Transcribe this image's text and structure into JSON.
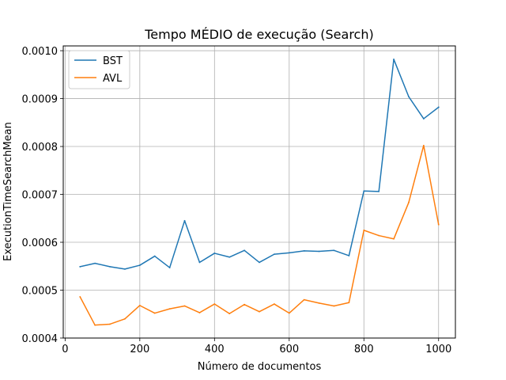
{
  "chart_data": {
    "type": "line",
    "title": "Tempo MÉDIO de execução (Search)",
    "xlabel": "Número de documentos",
    "ylabel": "ExecutionTimeSearchMean",
    "xlim": [
      -5,
      1045
    ],
    "ylim": [
      0.0004,
      0.00101
    ],
    "xticks": [
      0,
      200,
      400,
      600,
      800,
      1000
    ],
    "yticks": [
      0.0004,
      0.0005,
      0.0006,
      0.0007,
      0.0008,
      0.0009,
      0.001
    ],
    "ytick_labels": [
      "0.0004",
      "0.0005",
      "0.0006",
      "0.0007",
      "0.0008",
      "0.0009",
      "0.0010"
    ],
    "grid": true,
    "legend_position": "top-left",
    "x": [
      40,
      80,
      120,
      160,
      200,
      240,
      280,
      320,
      360,
      400,
      440,
      480,
      520,
      560,
      600,
      640,
      680,
      720,
      760,
      800,
      840,
      880,
      920,
      960,
      1000
    ],
    "series": [
      {
        "name": "BST",
        "color": "#1f77b4",
        "values": [
          0.000549,
          0.000556,
          0.000549,
          0.000544,
          0.000552,
          0.000571,
          0.000547,
          0.000645,
          0.000558,
          0.000577,
          0.000569,
          0.000583,
          0.000558,
          0.000575,
          0.000578,
          0.000582,
          0.000581,
          0.000583,
          0.000572,
          0.000707,
          0.000706,
          0.000982,
          0.000904,
          0.000858,
          0.000882
        ]
      },
      {
        "name": "AVL",
        "color": "#ff7f0e",
        "values": [
          0.000486,
          0.000427,
          0.000429,
          0.00044,
          0.000468,
          0.000452,
          0.000461,
          0.000467,
          0.000453,
          0.000471,
          0.000451,
          0.00047,
          0.000455,
          0.000471,
          0.000452,
          0.00048,
          0.000473,
          0.000467,
          0.000474,
          0.000625,
          0.000614,
          0.000607,
          0.000683,
          0.000802,
          0.000637
        ]
      }
    ]
  }
}
